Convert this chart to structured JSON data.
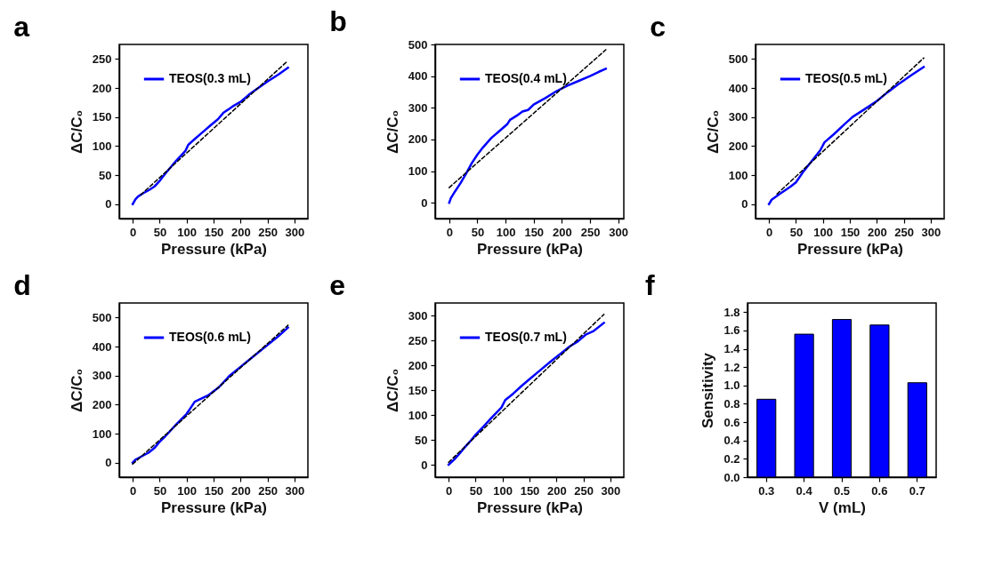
{
  "chart_data": [
    {
      "type": "line",
      "title": "a",
      "xlabel": "Pressure (kPa)",
      "ylabel": "ΔC/C₀",
      "xlim": [
        -25,
        325
      ],
      "ylim": [
        -25,
        275
      ],
      "xticks": [
        0,
        50,
        100,
        150,
        200,
        250,
        300
      ],
      "yticks": [
        0,
        50,
        100,
        150,
        200,
        250
      ],
      "legend": "top left",
      "series": [
        {
          "name": "TEOS(0.3 mL)",
          "color": "#0000ff",
          "line_style": "solid",
          "x": [
            0,
            5,
            10,
            20,
            30,
            40,
            50,
            60,
            70,
            80,
            90,
            98,
            103,
            115,
            130,
            145,
            158,
            168,
            185,
            200,
            215,
            230,
            250,
            270,
            288
          ],
          "values": [
            0,
            8,
            13,
            19,
            24,
            30,
            40,
            52,
            63,
            74,
            84,
            92,
            102,
            112,
            124,
            136,
            146,
            157,
            168,
            176,
            188,
            198,
            211,
            223,
            235
          ]
        },
        {
          "type": "line",
          "color": "#000000",
          "line_style": "dashed",
          "x": [
            15,
            288
          ],
          "values": [
            16,
            247
          ]
        }
      ]
    },
    {
      "type": "line",
      "title": "b",
      "xlabel": "Pressure (kPa)",
      "ylabel": "ΔC/C₀",
      "xlim": [
        -25,
        310
      ],
      "ylim": [
        -50,
        500
      ],
      "xticks": [
        0,
        50,
        100,
        150,
        200,
        250,
        300
      ],
      "yticks": [
        0,
        100,
        200,
        300,
        400,
        500
      ],
      "legend": "top left",
      "series": [
        {
          "name": "TEOS(0.4 mL)",
          "color": "#0000ff",
          "line_style": "solid",
          "x": [
            0,
            3,
            10,
            20,
            30,
            40,
            50,
            60,
            75,
            90,
            103,
            108,
            120,
            130,
            140,
            150,
            170,
            190,
            210,
            230,
            250,
            265,
            278
          ],
          "values": [
            0,
            15,
            35,
            62,
            92,
            125,
            152,
            175,
            205,
            228,
            248,
            262,
            275,
            288,
            293,
            310,
            330,
            352,
            370,
            385,
            400,
            413,
            423
          ]
        },
        {
          "type": "line",
          "color": "#000000",
          "line_style": "dashed",
          "x": [
            0,
            278
          ],
          "values": [
            48,
            483
          ]
        }
      ]
    },
    {
      "type": "line",
      "title": "c",
      "xlabel": "Pressure (kPa)",
      "ylabel": "ΔC/C₀",
      "xlim": [
        -25,
        325
      ],
      "ylim": [
        -50,
        550
      ],
      "xticks": [
        0,
        50,
        100,
        150,
        200,
        250,
        300
      ],
      "yticks": [
        0,
        100,
        200,
        300,
        400,
        500
      ],
      "legend": "top left",
      "series": [
        {
          "name": "TEOS(0.5 mL)",
          "color": "#0000ff",
          "line_style": "solid",
          "x": [
            0,
            5,
            20,
            40,
            50,
            65,
            80,
            95,
            103,
            120,
            140,
            155,
            180,
            200,
            220,
            240,
            265,
            287
          ],
          "values": [
            0,
            15,
            35,
            60,
            75,
            115,
            150,
            185,
            213,
            240,
            275,
            300,
            330,
            355,
            385,
            413,
            445,
            472
          ]
        },
        {
          "type": "line",
          "color": "#000000",
          "line_style": "dashed",
          "x": [
            15,
            287
          ],
          "values": [
            35,
            503
          ]
        }
      ]
    },
    {
      "type": "line",
      "title": "d",
      "xlabel": "Pressure (kPa)",
      "ylabel": "ΔC/C₀",
      "xlim": [
        -25,
        325
      ],
      "ylim": [
        -50,
        550
      ],
      "xticks": [
        0,
        50,
        100,
        150,
        200,
        250,
        300
      ],
      "yticks": [
        0,
        100,
        200,
        300,
        400,
        500
      ],
      "legend": "top left",
      "series": [
        {
          "name": "TEOS(0.6 mL)",
          "color": "#0000ff",
          "line_style": "solid",
          "x": [
            0,
            5,
            10,
            20,
            30,
            40,
            50,
            60,
            80,
            100,
            108,
            115,
            140,
            160,
            180,
            200,
            220,
            250,
            270,
            288
          ],
          "values": [
            0,
            10,
            15,
            25,
            35,
            50,
            72,
            90,
            130,
            168,
            190,
            210,
            232,
            260,
            300,
            330,
            360,
            405,
            435,
            465
          ]
        },
        {
          "type": "line",
          "color": "#000000",
          "line_style": "dashed",
          "x": [
            0,
            288
          ],
          "values": [
            -5,
            473
          ]
        }
      ]
    },
    {
      "type": "line",
      "title": "e",
      "xlabel": "Pressure (kPa)",
      "ylabel": "ΔC/C₀",
      "xlim": [
        -25,
        325
      ],
      "ylim": [
        -25,
        325
      ],
      "xticks": [
        0,
        50,
        100,
        150,
        200,
        250,
        300
      ],
      "yticks": [
        0,
        50,
        100,
        150,
        200,
        250,
        300
      ],
      "legend": "top left",
      "series": [
        {
          "name": "TEOS(0.7 mL)",
          "color": "#0000ff",
          "line_style": "solid",
          "x": [
            0,
            10,
            20,
            30,
            40,
            50,
            65,
            80,
            98,
            105,
            120,
            135,
            150,
            170,
            190,
            210,
            225,
            240,
            255,
            268,
            288
          ],
          "values": [
            0,
            10,
            22,
            35,
            47,
            60,
            77,
            95,
            115,
            130,
            143,
            158,
            172,
            190,
            208,
            225,
            238,
            248,
            262,
            268,
            285
          ]
        },
        {
          "type": "line",
          "color": "#000000",
          "line_style": "dashed",
          "x": [
            0,
            288
          ],
          "values": [
            5,
            302
          ]
        }
      ]
    },
    {
      "type": "bar",
      "title": "f",
      "xlabel": "V (mL)",
      "ylabel": "Sensitivity",
      "categories": [
        "0.3",
        "0.4",
        "0.5",
        "0.6",
        "0.7"
      ],
      "values": [
        0.85,
        1.56,
        1.72,
        1.66,
        1.03
      ],
      "color": "#0000ff",
      "ylim": [
        0,
        1.9
      ],
      "yticks": [
        {
          "value": 0,
          "label": "0.0"
        },
        0.2,
        0.4,
        0.6,
        0.8,
        {
          "value": 1,
          "label": "1.0"
        },
        1.2,
        1.4,
        1.6,
        1.8
      ]
    }
  ]
}
